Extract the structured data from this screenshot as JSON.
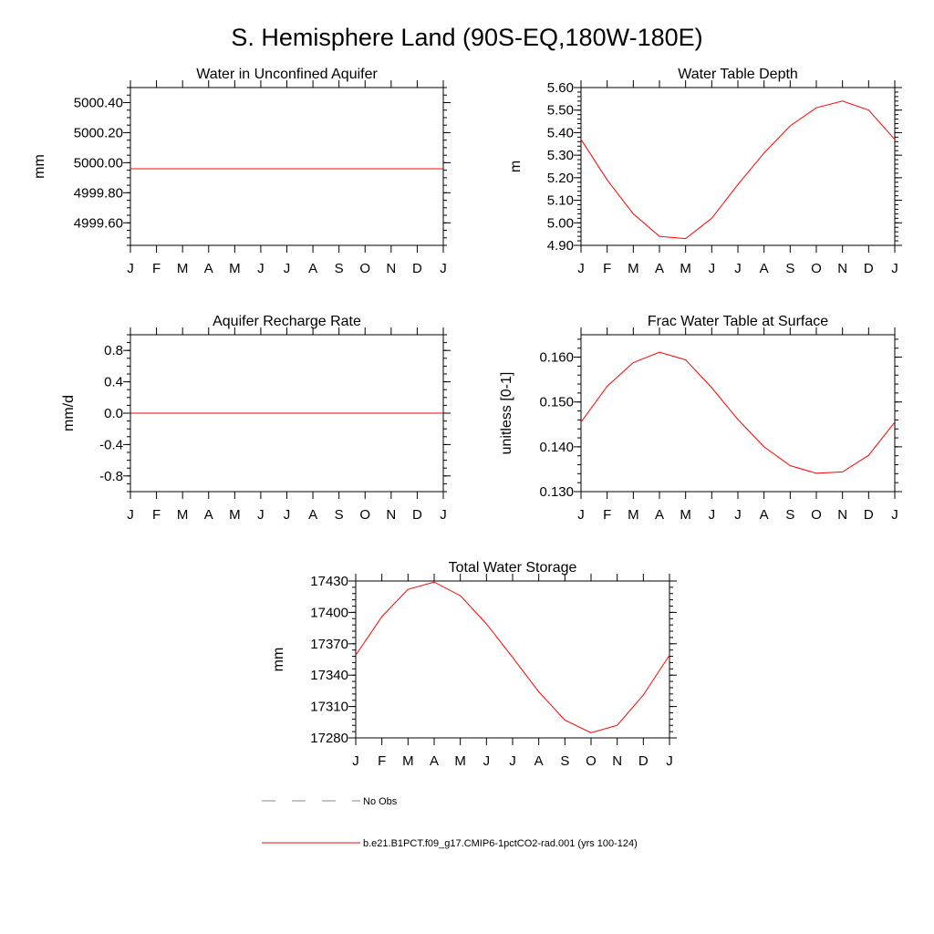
{
  "figure_title": "S. Hemisphere Land (90S-EQ,180W-180E)",
  "chart_data": [
    {
      "type": "line",
      "title": "Water in Unconfined Aquifer",
      "xlabel": "",
      "ylabel": "mm",
      "categories": [
        "J",
        "F",
        "M",
        "A",
        "M",
        "J",
        "J",
        "A",
        "S",
        "O",
        "N",
        "D",
        "J"
      ],
      "ylim": [
        4999.45,
        5000.5
      ],
      "yticks": [
        4999.6,
        4999.8,
        5000.0,
        5000.2,
        5000.4
      ],
      "ytick_labels": [
        "4999.60",
        "4999.80",
        "5000.00",
        "5000.20",
        "5000.40"
      ],
      "yminor_step": 0.05,
      "series": [
        {
          "values": [
            4999.96,
            4999.96,
            4999.96,
            4999.96,
            4999.96,
            4999.96,
            4999.96,
            4999.96,
            4999.96,
            4999.96,
            4999.96,
            4999.96,
            4999.96
          ]
        }
      ]
    },
    {
      "type": "line",
      "title": "Water Table Depth",
      "xlabel": "",
      "ylabel": "m",
      "categories": [
        "J",
        "F",
        "M",
        "A",
        "M",
        "J",
        "J",
        "A",
        "S",
        "O",
        "N",
        "D",
        "J"
      ],
      "ylim": [
        4.9,
        5.6
      ],
      "yticks": [
        4.9,
        5.0,
        5.1,
        5.2,
        5.3,
        5.4,
        5.5,
        5.6
      ],
      "ytick_labels": [
        "4.90",
        "5.00",
        "5.10",
        "5.20",
        "5.30",
        "5.40",
        "5.50",
        "5.60"
      ],
      "yminor_step": 0.02,
      "series": [
        {
          "values": [
            5.37,
            5.19,
            5.04,
            4.94,
            4.93,
            5.02,
            5.17,
            5.31,
            5.43,
            5.51,
            5.54,
            5.5,
            5.37
          ]
        }
      ]
    },
    {
      "type": "line",
      "title": "Aquifer Recharge Rate",
      "xlabel": "",
      "ylabel": "mm/d",
      "categories": [
        "J",
        "F",
        "M",
        "A",
        "M",
        "J",
        "J",
        "A",
        "S",
        "O",
        "N",
        "D",
        "J"
      ],
      "ylim": [
        -1.0,
        1.0
      ],
      "yticks": [
        -0.8,
        -0.4,
        0.0,
        0.4,
        0.8
      ],
      "ytick_labels": [
        "-0.8",
        "-0.4",
        "0.0",
        "0.4",
        "0.8"
      ],
      "yminor_step": 0.1,
      "series": [
        {
          "values": [
            0,
            0,
            0,
            0,
            0,
            0,
            0,
            0,
            0,
            0,
            0,
            0,
            0
          ]
        }
      ]
    },
    {
      "type": "line",
      "title": "Frac Water Table at Surface",
      "xlabel": "",
      "ylabel": "unitless [0-1]",
      "categories": [
        "J",
        "F",
        "M",
        "A",
        "M",
        "J",
        "J",
        "A",
        "S",
        "O",
        "N",
        "D",
        "J"
      ],
      "ylim": [
        0.13,
        0.165
      ],
      "yticks": [
        0.13,
        0.14,
        0.15,
        0.16
      ],
      "ytick_labels": [
        "0.130",
        "0.140",
        "0.150",
        "0.160"
      ],
      "yminor_step": 0.002,
      "series": [
        {
          "values": [
            0.1455,
            0.1535,
            0.1588,
            0.1611,
            0.1594,
            0.1532,
            0.1461,
            0.14,
            0.1358,
            0.1341,
            0.1344,
            0.1381,
            0.1455
          ]
        }
      ]
    },
    {
      "type": "line",
      "title": "Total Water Storage",
      "xlabel": "",
      "ylabel": "mm",
      "categories": [
        "J",
        "F",
        "M",
        "A",
        "M",
        "J",
        "J",
        "A",
        "S",
        "O",
        "N",
        "D",
        "J"
      ],
      "ylim": [
        17280,
        17430
      ],
      "yticks": [
        17280,
        17310,
        17340,
        17370,
        17400,
        17430
      ],
      "ytick_labels": [
        "17280",
        "17310",
        "17340",
        "17370",
        "17400",
        "17430"
      ],
      "yminor_step": 6,
      "series": [
        {
          "values": [
            17359,
            17396,
            17422,
            17429,
            17416,
            17389,
            17357,
            17324,
            17297,
            17285,
            17292,
            17321,
            17359
          ]
        }
      ]
    }
  ],
  "legend": {
    "entries": [
      {
        "label": "No Obs",
        "style": "dashed",
        "color": "#888888"
      },
      {
        "label": "b.e21.B1PCT.f09_g17.CMIP6-1pctCO2-rad.001 (yrs 100-124)",
        "style": "solid",
        "color": "#ff0000"
      }
    ]
  }
}
